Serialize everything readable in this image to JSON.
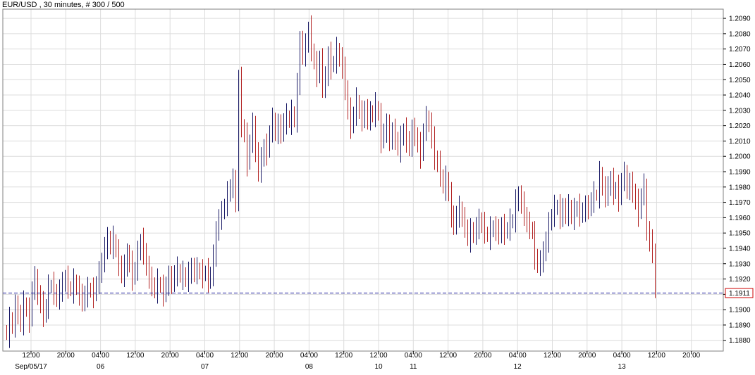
{
  "header": {
    "symbol": "EUR/USD",
    "interval": "30 minutes",
    "count_text": "# 300 / 500"
  },
  "colors": {
    "up": "#1a1a66",
    "down": "#b22222",
    "grid": "#dcdcdc",
    "current_line": "#1f1f9f",
    "price_box": "#cc0000"
  },
  "chart_data": {
    "type": "ohlc",
    "title": "EUR/USD , 30 minutes, # 300 / 500",
    "ylim": [
      1.1873,
      1.2096
    ],
    "y_ticks": [
      1.188,
      1.189,
      1.19,
      1.191,
      1.192,
      1.193,
      1.194,
      1.195,
      1.196,
      1.197,
      1.198,
      1.199,
      1.2,
      1.201,
      1.202,
      1.203,
      1.204,
      1.205,
      1.206,
      1.207,
      1.208,
      1.209
    ],
    "y_tick_labels": [
      "1.1880",
      "1.1890",
      "1.1900",
      "1.1910",
      "1.1920",
      "1.1930",
      "1.1940",
      "1.1950",
      "1.1960",
      "1.1970",
      "1.1980",
      "1.1990",
      "1.2000",
      "1.2010",
      "1.2020",
      "1.2030",
      "1.2040",
      "1.2050",
      "1.2060",
      "1.2070",
      "1.2080",
      "1.2090"
    ],
    "x_time_labels": [
      "12:00",
      "20:00",
      "04:00",
      "12:00",
      "20:00",
      "04:00",
      "12:00",
      "20:00",
      "04:00",
      "12:00",
      "12:00",
      "04:00",
      "12:00",
      "20:00",
      "04:00",
      "12:00",
      "20:00",
      "04:00",
      "12:00",
      "20:00"
    ],
    "x_date_labels": [
      "Sep/05/17",
      "06",
      "07",
      "08",
      "10",
      "11",
      "12",
      "13"
    ],
    "current_price": 1.1911,
    "current_price_label": "1.1911",
    "closes": [
      1.1883,
      1.1893,
      1.1889,
      1.1902,
      1.1897,
      1.1891,
      1.1904,
      1.1899,
      1.1893,
      1.1914,
      1.192,
      1.1909,
      1.1904,
      1.1896,
      1.1902,
      1.1914,
      1.1916,
      1.1911,
      1.1907,
      1.1912,
      1.1917,
      1.192,
      1.1915,
      1.1912,
      1.1918,
      1.1914,
      1.191,
      1.1905,
      1.1909,
      1.1913,
      1.1912,
      1.1909,
      1.1918,
      1.1923,
      1.1931,
      1.194,
      1.1946,
      1.1941,
      1.1946,
      1.1937,
      1.193,
      1.1922,
      1.1928,
      1.1936,
      1.193,
      1.192,
      1.1927,
      1.1936,
      1.1945,
      1.1937,
      1.1928,
      1.192,
      1.1916,
      1.1912,
      1.1918,
      1.1914,
      1.191,
      1.1916,
      1.1921,
      1.1917,
      1.1923,
      1.1926,
      1.1921,
      1.1923,
      1.1919,
      1.1923,
      1.1927,
      1.1924,
      1.1926,
      1.1924,
      1.1922,
      1.1925,
      1.1919,
      1.1922,
      1.1935,
      1.195,
      1.196,
      1.1962,
      1.1969,
      1.1975,
      1.198,
      1.1984,
      1.197,
      1.205,
      1.202,
      1.2013,
      1.1995,
      1.201,
      1.202,
      1.2002,
      1.199,
      1.1998,
      1.2006,
      1.2002,
      1.2017,
      1.2023,
      1.2015,
      1.202,
      1.2015,
      1.2022,
      1.2026,
      1.2022,
      1.2028,
      1.2023,
      1.2046,
      1.2075,
      1.2066,
      1.2072,
      1.2083,
      1.207,
      1.206,
      1.2053,
      1.2063,
      1.2045,
      1.2051,
      1.2066,
      1.2058,
      1.2062,
      1.2069,
      1.2063,
      1.2058,
      1.2043,
      1.203,
      1.2019,
      1.2028,
      1.2036,
      1.2028,
      1.2024,
      1.203,
      1.2024,
      1.2028,
      1.2027,
      1.2033,
      1.2026,
      1.201,
      1.2016,
      1.202,
      1.201,
      1.2016,
      1.2012,
      1.2004,
      1.2011,
      1.2017,
      1.201,
      1.2006,
      1.2017,
      1.2014,
      1.2007,
      1.2,
      1.2018,
      1.2024,
      1.2021,
      1.2012,
      1.1998,
      1.1995,
      1.1988,
      1.1979,
      1.1985,
      1.1975,
      1.1961,
      1.1955,
      1.1961,
      1.1966,
      1.1958,
      1.1955,
      1.1945,
      1.1951,
      1.1949,
      1.1953,
      1.1958,
      1.1955,
      1.1951,
      1.1947,
      1.1952,
      1.1953,
      1.1952,
      1.1949,
      1.1954,
      1.195,
      1.1953,
      1.1957,
      1.1958,
      1.197,
      1.1974,
      1.1969,
      1.1962,
      1.1955,
      1.1954,
      1.1949,
      1.1934,
      1.1929,
      1.1931,
      1.1937,
      1.1945,
      1.1955,
      1.1962,
      1.1966,
      1.1967,
      1.196,
      1.1966,
      1.1962,
      1.1967,
      1.196,
      1.1964,
      1.1967,
      1.1962,
      1.1964,
      1.1967,
      1.1966,
      1.1971,
      1.1975,
      1.1974,
      1.1988,
      1.1979,
      1.1974,
      1.198,
      1.1984,
      1.1976,
      1.1979,
      1.1972,
      1.1985,
      1.1988,
      1.1978,
      1.1982,
      1.1977,
      1.197,
      1.1962,
      1.1976,
      1.198,
      1.195,
      1.1945,
      1.1937,
      1.1913
    ]
  }
}
